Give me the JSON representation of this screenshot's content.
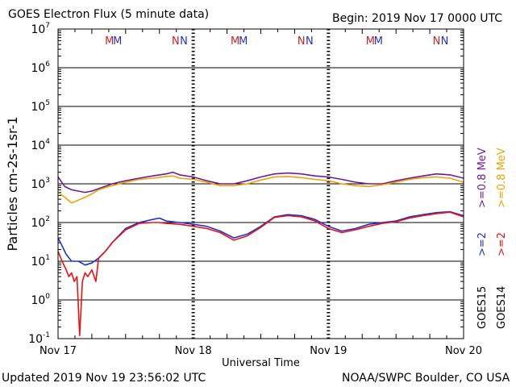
{
  "header": {
    "title": "GOES Electron Flux (5 minute data)",
    "begin": "Begin: 2019 Nov 17 0000 UTC"
  },
  "footer": {
    "updated": "Updated 2019 Nov 19 23:56:02 UTC",
    "credit": "NOAA/SWPC Boulder, CO USA"
  },
  "colors": {
    "goes15_low": "#6a1b9a",
    "goes14_low": "#f0a000",
    "goes15_high": "#1a33d6",
    "goes14_high": "#ee1111",
    "marker_m": "#cc2222",
    "marker_m2": "#2233cc",
    "marker_n": "#cc2222",
    "marker_n2": "#2233cc"
  },
  "chart_data": {
    "type": "line",
    "title": "GOES Electron Flux (5 minute data)",
    "xlabel": "Universal Time",
    "ylabel": "Particles cm-2s-1sr-1",
    "y_scale": "log",
    "ylim": [
      0.1,
      10000000
    ],
    "y_ticks": [
      {
        "base": "10",
        "exp": "7"
      },
      {
        "base": "10",
        "exp": "6"
      },
      {
        "base": "10",
        "exp": "5"
      },
      {
        "base": "10",
        "exp": "4"
      },
      {
        "base": "10",
        "exp": "3"
      },
      {
        "base": "10",
        "exp": "2"
      },
      {
        "base": "10",
        "exp": "1"
      },
      {
        "base": "10",
        "exp": "0"
      },
      {
        "base": "10",
        "exp": "-1"
      }
    ],
    "x_tick_labels": [
      "Nov 17",
      "Nov 18",
      "Nov 19",
      "Nov 20"
    ],
    "xlim_days": [
      0,
      3
    ],
    "threshold": 1000,
    "legend": {
      "placement": "right",
      "instruments": [
        "GOES15",
        "GOES14"
      ],
      "entries": [
        {
          "label": ">=0.8 MeV",
          "series": "GOES15 >=0.8 MeV"
        },
        {
          "label": ">=0.8 MeV",
          "series": "GOES14 >=0.8 MeV"
        },
        {
          "label": ">=2",
          "series": "GOES15 >=2 MeV"
        },
        {
          "label": ">=2",
          "series": "GOES14 >=2 MeV"
        }
      ]
    },
    "markers": [
      {
        "label": "M",
        "color": "marker_m",
        "x": 0.38
      },
      {
        "label": "M",
        "color": "marker_m2",
        "x": 0.44
      },
      {
        "label": "N",
        "color": "marker_n",
        "x": 0.87
      },
      {
        "label": "N",
        "color": "marker_n2",
        "x": 0.93
      },
      {
        "label": "M",
        "color": "marker_m",
        "x": 1.31
      },
      {
        "label": "M",
        "color": "marker_m2",
        "x": 1.37
      },
      {
        "label": "N",
        "color": "marker_n",
        "x": 1.8
      },
      {
        "label": "N",
        "color": "marker_n2",
        "x": 1.86
      },
      {
        "label": "M",
        "color": "marker_m",
        "x": 2.31
      },
      {
        "label": "M",
        "color": "marker_m2",
        "x": 2.37
      },
      {
        "label": "N",
        "color": "marker_n",
        "x": 2.8
      },
      {
        "label": "N",
        "color": "marker_n2",
        "x": 2.86
      }
    ],
    "series": [
      {
        "name": "GOES15 >=0.8 MeV",
        "color": "goes15_low",
        "x": [
          0.0,
          0.05,
          0.1,
          0.15,
          0.2,
          0.25,
          0.3,
          0.4,
          0.5,
          0.6,
          0.7,
          0.8,
          0.85,
          0.9,
          1.0,
          1.1,
          1.2,
          1.3,
          1.4,
          1.5,
          1.6,
          1.7,
          1.8,
          1.9,
          2.0,
          2.1,
          2.2,
          2.3,
          2.4,
          2.5,
          2.6,
          2.7,
          2.8,
          2.9,
          3.0
        ],
        "y": [
          1500,
          850,
          700,
          650,
          600,
          650,
          750,
          1000,
          1200,
          1400,
          1600,
          1800,
          2000,
          1700,
          1500,
          1200,
          1000,
          1000,
          1200,
          1500,
          1800,
          1900,
          1800,
          1600,
          1500,
          1300,
          1100,
          1000,
          1000,
          1200,
          1400,
          1600,
          1800,
          1700,
          1400
        ]
      },
      {
        "name": "GOES14 >=0.8 MeV",
        "color": "goes14_low",
        "x": [
          0.0,
          0.05,
          0.1,
          0.15,
          0.2,
          0.25,
          0.3,
          0.4,
          0.5,
          0.6,
          0.7,
          0.8,
          0.85,
          0.9,
          1.0,
          1.1,
          1.2,
          1.3,
          1.4,
          1.5,
          1.6,
          1.7,
          1.8,
          1.9,
          2.0,
          2.1,
          2.2,
          2.3,
          2.4,
          2.5,
          2.6,
          2.7,
          2.8,
          2.9,
          3.0
        ],
        "y": [
          600,
          450,
          320,
          380,
          450,
          550,
          700,
          900,
          1100,
          1300,
          1400,
          1550,
          1600,
          1400,
          1300,
          1100,
          900,
          900,
          1000,
          1250,
          1500,
          1550,
          1450,
          1300,
          1200,
          1000,
          900,
          850,
          950,
          1100,
          1300,
          1450,
          1500,
          1400,
          1100
        ]
      },
      {
        "name": "GOES15 >=2 MeV",
        "color": "goes15_high",
        "x": [
          0.0,
          0.03,
          0.06,
          0.1,
          0.15,
          0.2,
          0.25,
          0.3,
          0.35,
          0.4,
          0.5,
          0.6,
          0.7,
          0.75,
          0.8,
          0.9,
          1.0,
          1.1,
          1.2,
          1.3,
          1.4,
          1.5,
          1.6,
          1.7,
          1.8,
          1.9,
          2.0,
          2.1,
          2.2,
          2.3,
          2.4,
          2.5,
          2.6,
          2.7,
          2.8,
          2.9,
          3.0
        ],
        "y": [
          40,
          25,
          15,
          10,
          10,
          8,
          9,
          12,
          18,
          30,
          70,
          100,
          120,
          130,
          110,
          100,
          90,
          80,
          60,
          40,
          50,
          80,
          140,
          160,
          150,
          120,
          80,
          60,
          70,
          90,
          100,
          110,
          140,
          160,
          180,
          190,
          150
        ]
      },
      {
        "name": "GOES14 >=2 MeV",
        "color": "goes14_high",
        "x": [
          0.0,
          0.03,
          0.06,
          0.08,
          0.1,
          0.12,
          0.14,
          0.16,
          0.18,
          0.2,
          0.22,
          0.25,
          0.28,
          0.3,
          0.35,
          0.4,
          0.5,
          0.6,
          0.7,
          0.75,
          0.8,
          0.9,
          1.0,
          1.1,
          1.2,
          1.3,
          1.4,
          1.5,
          1.6,
          1.7,
          1.8,
          1.9,
          2.0,
          2.1,
          2.2,
          2.3,
          2.4,
          2.5,
          2.6,
          2.7,
          2.8,
          2.9,
          3.0
        ],
        "y": [
          18,
          10,
          6,
          4,
          5,
          3,
          4,
          0.12,
          3,
          5,
          4,
          6,
          3,
          12,
          18,
          30,
          65,
          95,
          100,
          100,
          95,
          90,
          80,
          70,
          55,
          35,
          45,
          75,
          135,
          150,
          140,
          110,
          70,
          55,
          65,
          80,
          95,
          105,
          130,
          150,
          170,
          185,
          140
        ]
      }
    ]
  }
}
